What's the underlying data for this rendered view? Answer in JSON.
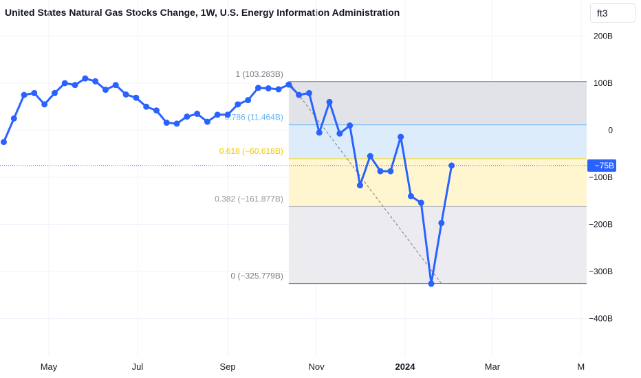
{
  "header": {
    "title": "United States Natural Gas Stocks Change, 1W, U.S. Energy Information Administration",
    "unit_label": "ft3"
  },
  "colors": {
    "line": "#2962ff",
    "fib_1": "#787b86",
    "fib_0786": "#64b5f6",
    "fib_0618": "#ffd600",
    "fib_0382": "#b2b5be",
    "fib_0": "#787b86",
    "price_label_bg": "#2962ff"
  },
  "chart_data": {
    "type": "line",
    "title": "United States Natural Gas Stocks Change, 1W, U.S. Energy Information Administration",
    "xlabel": "",
    "ylabel": "",
    "y_unit": "B",
    "ylim": [
      -480,
      230
    ],
    "y_ticks": [
      {
        "v": 200,
        "label": "200B"
      },
      {
        "v": 100,
        "label": "100B"
      },
      {
        "v": 0,
        "label": "0"
      },
      {
        "v": -100,
        "label": "−100B"
      },
      {
        "v": -200,
        "label": "−200B"
      },
      {
        "v": -300,
        "label": "−300B"
      },
      {
        "v": -400,
        "label": "−400B"
      }
    ],
    "x_ticks": [
      {
        "label": "May",
        "date": "2023-05-01",
        "bold": false
      },
      {
        "label": "Jul",
        "date": "2023-07-01",
        "bold": false
      },
      {
        "label": "Sep",
        "date": "2023-09-01",
        "bold": false
      },
      {
        "label": "Nov",
        "date": "2023-11-01",
        "bold": false
      },
      {
        "label": "2024",
        "date": "2024-01-01",
        "bold": true
      },
      {
        "label": "Mar",
        "date": "2024-03-01",
        "bold": false
      },
      {
        "label": "M",
        "date": "2024-05-01",
        "bold": false
      }
    ],
    "last_value_label": "−75B",
    "last_value": -75,
    "series": [
      {
        "x": [
          "2023-03-31",
          "2023-04-07",
          "2023-04-14",
          "2023-04-21",
          "2023-04-28",
          "2023-05-05",
          "2023-05-12",
          "2023-05-19",
          "2023-05-26",
          "2023-06-02",
          "2023-06-09",
          "2023-06-16",
          "2023-06-23",
          "2023-06-30",
          "2023-07-07",
          "2023-07-14",
          "2023-07-21",
          "2023-07-28",
          "2023-08-04",
          "2023-08-11",
          "2023-08-18",
          "2023-08-25",
          "2023-09-01",
          "2023-09-08",
          "2023-09-15",
          "2023-09-22",
          "2023-09-29",
          "2023-10-06",
          "2023-10-13",
          "2023-10-20",
          "2023-10-27",
          "2023-11-03",
          "2023-11-10",
          "2023-11-17",
          "2023-11-24",
          "2023-12-01",
          "2023-12-08",
          "2023-12-15",
          "2023-12-22",
          "2023-12-29",
          "2024-01-05",
          "2024-01-12",
          "2024-01-19",
          "2024-01-26",
          "2024-02-02"
        ],
        "y": [
          -25,
          25,
          75,
          79,
          55,
          79,
          100,
          96,
          110,
          104,
          86,
          96,
          76,
          69,
          50,
          42,
          16,
          14,
          29,
          35,
          18,
          33,
          33,
          55,
          64,
          90,
          89,
          87,
          97,
          75,
          79,
          -5,
          60,
          -7,
          10,
          -117,
          -55,
          -87,
          -87,
          -14,
          -140,
          -154,
          -326,
          -197,
          -75
        ]
      }
    ],
    "fibonacci": {
      "start": {
        "date": "2023-10-13",
        "value": 103.283
      },
      "end": {
        "date": "2024-01-26",
        "value": -325.779
      },
      "levels": [
        {
          "ratio": 1,
          "value": 103.283,
          "label": "1 (103.283B)"
        },
        {
          "ratio": 0.786,
          "value": 11.464,
          "label": "0.786 (11.464B)"
        },
        {
          "ratio": 0.618,
          "value": -60.618,
          "label": "0.618 (−60.618B)"
        },
        {
          "ratio": 0.382,
          "value": -161.877,
          "label": "0.382 (−161.877B)"
        },
        {
          "ratio": 0,
          "value": -325.779,
          "label": "0 (−325.779B)"
        }
      ]
    }
  }
}
